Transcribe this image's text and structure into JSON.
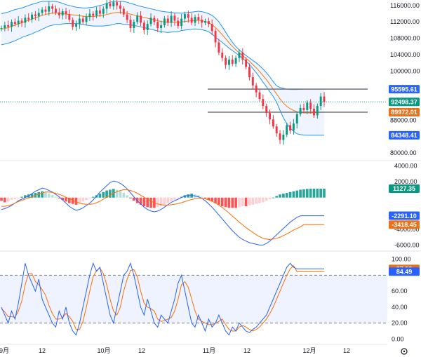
{
  "chart_data": [
    {
      "type": "candlestick",
      "title": "Price (Bollinger Bands)",
      "y_ticks": [
        "116000.00",
        "112000.00",
        "108000.00",
        "104000.00",
        "100000.00",
        "88000.00",
        "80000.00"
      ],
      "ylim": [
        78500,
        117000
      ],
      "closes": [
        110500,
        111200,
        110800,
        112000,
        111500,
        112300,
        111800,
        113000,
        112600,
        113800,
        113400,
        114200,
        115000,
        114500,
        115800,
        115200,
        114300,
        113600,
        114600,
        113900,
        112500,
        110800,
        111500,
        112800,
        112000,
        113200,
        114000,
        113500,
        114800,
        114000,
        115200,
        116500,
        115800,
        116800,
        116000,
        115200,
        113800,
        112500,
        110500,
        112000,
        113500,
        111800,
        110000,
        111500,
        113000,
        112000,
        110500,
        111200,
        112800,
        111800,
        113500,
        112300,
        111000,
        112800,
        113900,
        113000,
        111800,
        113200,
        112500,
        111800,
        112200,
        111500,
        109800,
        107000,
        104500,
        103200,
        101500,
        102800,
        101800,
        103200,
        104500,
        102800,
        101000,
        98500,
        96500,
        94800,
        93200,
        91500,
        89800,
        88200,
        86500,
        84800,
        83200,
        84500,
        86800,
        85500,
        87200,
        89500,
        91000,
        90500,
        92300,
        90800,
        89200,
        91500,
        93800,
        92498
      ],
      "bb_upper": [
        114000,
        114200,
        114400,
        114700,
        115000,
        115200,
        115400,
        115700,
        116000,
        116300,
        116500,
        116800,
        117000,
        117000,
        117000,
        117000,
        117000,
        116800,
        116500,
        116200,
        116000,
        115800,
        115600,
        115500,
        115400,
        115400,
        115500,
        115600,
        115800,
        116000,
        116200,
        116500,
        116800,
        117000,
        117000,
        117000,
        117000,
        116800,
        116500,
        116300,
        116000,
        115800,
        115600,
        115400,
        115200,
        115000,
        114800,
        114600,
        114500,
        114400,
        114300,
        114200,
        114200,
        114100,
        114200,
        114300,
        114400,
        114500,
        114600,
        114500,
        114300,
        114000,
        113600,
        112900,
        112000,
        110800,
        109500,
        108200,
        107000,
        106000,
        105200,
        104500,
        103800,
        103200,
        102600,
        102000,
        101300,
        100500,
        99600,
        98600,
        97400,
        96400,
        96000,
        95800,
        95600,
        95500,
        95500,
        95500,
        95550,
        95600,
        95600,
        95600,
        95595,
        95595,
        95595,
        95595
      ],
      "bb_middle": [
        110200,
        110400,
        110600,
        110900,
        111200,
        111500,
        111800,
        112100,
        112400,
        112700,
        113000,
        113300,
        113600,
        113800,
        114000,
        114100,
        114200,
        114100,
        114000,
        113900,
        113800,
        113700,
        113600,
        113500,
        113400,
        113300,
        113300,
        113300,
        113400,
        113500,
        113600,
        113800,
        114000,
        114200,
        114300,
        114300,
        114200,
        114100,
        113900,
        113700,
        113500,
        113300,
        113100,
        112900,
        112700,
        112500,
        112300,
        112100,
        112000,
        111900,
        111900,
        111900,
        111900,
        112000,
        112100,
        112200,
        112300,
        112400,
        112400,
        112300,
        112100,
        111800,
        111300,
        110600,
        109800,
        108900,
        107900,
        106900,
        106000,
        105200,
        104500,
        103800,
        103100,
        102400,
        101600,
        100800,
        99900,
        98900,
        97900,
        96800,
        95600,
        94400,
        93200,
        92200,
        91400,
        90800,
        90400,
        90100,
        89900,
        89800,
        89800,
        89800,
        89850,
        89900,
        89950,
        89972
      ],
      "bb_lower": [
        106400,
        106600,
        106800,
        107100,
        107400,
        107800,
        108200,
        108500,
        108800,
        109100,
        109500,
        109800,
        110200,
        110600,
        111000,
        111200,
        111400,
        111400,
        111500,
        111600,
        111600,
        111600,
        111600,
        111500,
        111400,
        111200,
        111100,
        111000,
        111000,
        111000,
        111000,
        111100,
        111200,
        111400,
        111600,
        111600,
        111400,
        111400,
        111300,
        111100,
        111000,
        110800,
        110600,
        110400,
        110200,
        110000,
        109800,
        109600,
        109500,
        109400,
        109500,
        109600,
        109600,
        109900,
        110000,
        110100,
        110200,
        110300,
        110200,
        110100,
        109900,
        109600,
        109000,
        108300,
        107600,
        107000,
        106300,
        105600,
        105000,
        104400,
        103800,
        103100,
        102400,
        101600,
        100600,
        99600,
        98500,
        97300,
        96200,
        95000,
        93800,
        92400,
        90400,
        88600,
        87200,
        86100,
        85300,
        84700,
        84500,
        84400,
        84348,
        84348,
        84348,
        84348,
        84348,
        84348
      ],
      "badges": [
        {
          "label": "95595.61",
          "value": 95595.61,
          "color": "#2962ff"
        },
        {
          "label": "92498.37",
          "value": 92498.37,
          "color": "#089981"
        },
        {
          "label": "89972.01",
          "value": 89972.01,
          "color": "#e8711c"
        },
        {
          "label": "84348.41",
          "value": 84348.41,
          "color": "#2962ff"
        }
      ],
      "hlines": [
        95595.61,
        89972.01
      ]
    },
    {
      "type": "macd",
      "title": "MACD",
      "y_ticks": [
        "4000.00",
        "2000.00",
        "-4000.00",
        "-6000.00"
      ],
      "ylim": [
        -6500,
        4500
      ],
      "histogram": [
        -400,
        -600,
        -500,
        -300,
        -200,
        -100,
        100,
        300,
        400,
        500,
        600,
        700,
        800,
        700,
        500,
        300,
        100,
        -100,
        -300,
        -500,
        -700,
        -800,
        -900,
        -700,
        -500,
        -300,
        -100,
        100,
        300,
        500,
        700,
        900,
        1000,
        1100,
        1000,
        800,
        600,
        300,
        -100,
        -400,
        -700,
        -900,
        -1100,
        -1200,
        -1300,
        -1300,
        -1200,
        -1100,
        -900,
        -700,
        -500,
        -300,
        -100,
        100,
        300,
        400,
        500,
        400,
        300,
        100,
        -100,
        -300,
        -500,
        -700,
        -900,
        -1100,
        -1200,
        -1300,
        -1300,
        -1300,
        -1200,
        -1100,
        -1100,
        -1000,
        -900,
        -800,
        -700,
        -600,
        -400,
        -200,
        0,
        200,
        400,
        500,
        600,
        700,
        800,
        900,
        1000,
        1050,
        1100,
        1127,
        1127,
        1127,
        1127,
        1127
      ],
      "macd_line": [
        -1500,
        -1400,
        -1200,
        -1000,
        -700,
        -400,
        -200,
        0,
        200,
        500,
        800,
        1000,
        1200,
        1100,
        900,
        700,
        400,
        100,
        -300,
        -700,
        -1100,
        -1400,
        -1600,
        -1500,
        -1300,
        -1000,
        -700,
        -300,
        200,
        700,
        1100,
        1500,
        1900,
        2100,
        2000,
        1800,
        1500,
        1100,
        600,
        100,
        -400,
        -800,
        -1200,
        -1500,
        -1700,
        -1800,
        -1700,
        -1500,
        -1200,
        -900,
        -600,
        -400,
        -200,
        0,
        200,
        300,
        300,
        200,
        100,
        -100,
        -400,
        -800,
        -1200,
        -1700,
        -2200,
        -2700,
        -3200,
        -3700,
        -4200,
        -4600,
        -5000,
        -5300,
        -5500,
        -5700,
        -5800,
        -5900,
        -6000,
        -6000,
        -5800,
        -5500,
        -5100,
        -4700,
        -4300,
        -3900,
        -3500,
        -3100,
        -2800,
        -2500,
        -2300,
        -2291,
        -2291,
        -2291,
        -2291,
        -2291,
        -2291,
        -2291
      ],
      "signal_line": [
        -1100,
        -1100,
        -1000,
        -900,
        -700,
        -500,
        -350,
        -200,
        -50,
        100,
        300,
        450,
        600,
        700,
        700,
        650,
        550,
        400,
        250,
        50,
        -150,
        -350,
        -550,
        -700,
        -800,
        -850,
        -850,
        -800,
        -650,
        -450,
        -200,
        50,
        300,
        550,
        750,
        900,
        1000,
        1000,
        900,
        750,
        550,
        300,
        50,
        -200,
        -450,
        -650,
        -800,
        -900,
        -950,
        -950,
        -900,
        -850,
        -750,
        -650,
        -500,
        -350,
        -250,
        -150,
        -100,
        -100,
        -150,
        -300,
        -450,
        -700,
        -950,
        -1250,
        -1600,
        -1950,
        -2350,
        -2700,
        -3100,
        -3450,
        -3800,
        -4100,
        -4400,
        -4700,
        -4950,
        -5150,
        -5250,
        -5300,
        -5250,
        -5150,
        -5000,
        -4800,
        -4600,
        -4350,
        -4100,
        -3900,
        -3700,
        -3418,
        -3418,
        -3418,
        -3418,
        -3418,
        -3418,
        -3418
      ],
      "badges": [
        {
          "label": "1127.35",
          "value": 1127.35,
          "color": "#089981"
        },
        {
          "label": "-2291.10",
          "value": -2291.1,
          "color": "#2962ff"
        },
        {
          "label": "-3418.45",
          "value": -3418.45,
          "color": "#e8711c"
        }
      ]
    },
    {
      "type": "stochastic",
      "title": "Stochastic RSI",
      "y_ticks": [
        "100.00",
        "60.00",
        "40.00",
        "20.00",
        "0.00"
      ],
      "ylim": [
        -5,
        105
      ],
      "band": [
        20,
        80
      ],
      "k_line": [
        40,
        30,
        20,
        35,
        25,
        45,
        70,
        95,
        80,
        70,
        60,
        75,
        50,
        40,
        30,
        20,
        15,
        35,
        25,
        40,
        20,
        10,
        5,
        20,
        40,
        60,
        80,
        95,
        85,
        90,
        70,
        50,
        30,
        20,
        40,
        60,
        80,
        85,
        95,
        80,
        60,
        40,
        30,
        50,
        35,
        20,
        15,
        30,
        25,
        20,
        35,
        50,
        70,
        80,
        60,
        40,
        20,
        15,
        30,
        20,
        10,
        25,
        15,
        20,
        30,
        20,
        10,
        5,
        15,
        10,
        20,
        15,
        10,
        8,
        12,
        15,
        20,
        25,
        30,
        40,
        50,
        60,
        70,
        80,
        90,
        95,
        90,
        87.96,
        87.96,
        87.96,
        87.96,
        87.96,
        87.96,
        87.96,
        87.96,
        87.96
      ],
      "d_line": [
        38,
        34,
        28,
        28,
        27,
        35,
        48,
        68,
        82,
        82,
        72,
        68,
        62,
        55,
        42,
        32,
        25,
        25,
        27,
        32,
        28,
        22,
        12,
        12,
        22,
        40,
        60,
        78,
        86,
        89,
        82,
        68,
        50,
        35,
        30,
        40,
        60,
        75,
        86,
        87,
        78,
        60,
        45,
        40,
        38,
        35,
        25,
        22,
        23,
        25,
        27,
        35,
        50,
        68,
        72,
        65,
        50,
        35,
        25,
        22,
        20,
        18,
        18,
        20,
        22,
        25,
        18,
        12,
        10,
        10,
        15,
        17,
        15,
        12,
        10,
        12,
        15,
        20,
        25,
        32,
        40,
        50,
        60,
        70,
        80,
        88,
        92,
        84.49,
        84.49,
        84.49,
        84.49,
        84.49,
        84.49,
        84.49,
        84.49,
        84.49
      ],
      "badges": [
        {
          "label": "87.96",
          "value": 87.96,
          "color": "#e8711c"
        },
        {
          "label": "84.49",
          "value": 84.49,
          "color": "#2962ff"
        }
      ]
    }
  ],
  "x_axis": {
    "labels": [
      "9月",
      "12",
      "10月",
      "12",
      "11月",
      "12",
      "12月",
      "12"
    ]
  },
  "colors": {
    "up": "#089981",
    "down": "#f23645",
    "band_fill": "#2962ff",
    "band_line": "#2196f3",
    "basis": "#f57c00",
    "macd": "#2962ff",
    "signal": "#ff6d00",
    "hist_up_strong": "#26a69a",
    "hist_up_weak": "#b2dfdb",
    "hist_down_strong": "#ff5252",
    "hist_down_weak": "#ffcdd2",
    "stoch_k": "#2962ff",
    "stoch_d": "#ff6d00"
  },
  "icons": {
    "settings": "gear-icon"
  }
}
